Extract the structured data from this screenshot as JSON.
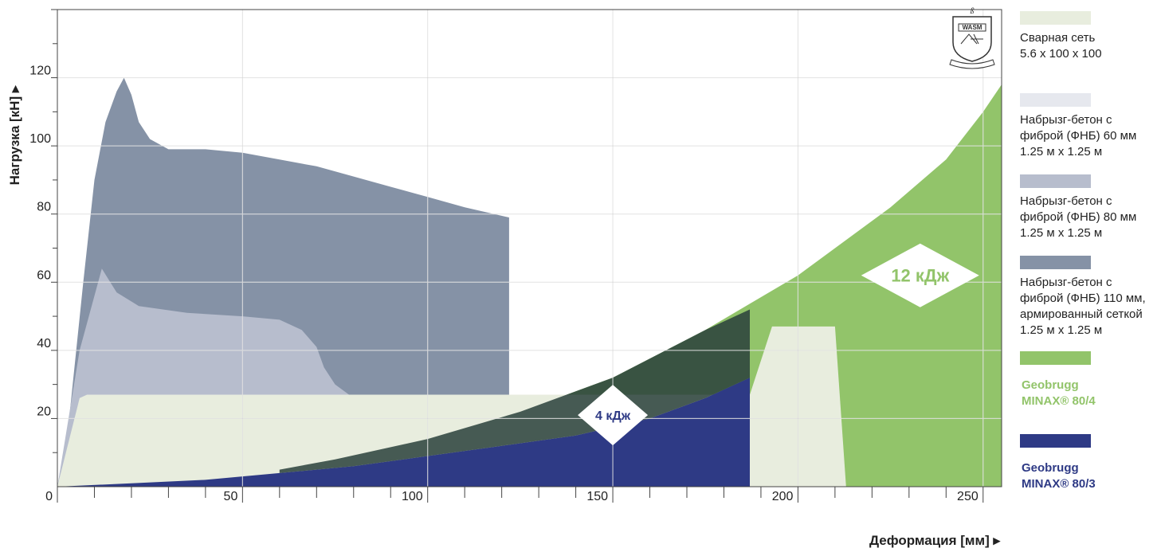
{
  "chart_data": {
    "type": "area",
    "xlabel": "Деформация [мм] ▸",
    "ylabel": "Нагрузка [кН] ▸",
    "xlim": [
      0,
      255
    ],
    "ylim": [
      0,
      140
    ],
    "x_ticks": [
      0,
      50,
      100,
      150,
      200,
      250
    ],
    "y_ticks": [
      20,
      40,
      60,
      80,
      100,
      120
    ],
    "grid": true,
    "colors": {
      "mesh": "#e8edde",
      "fnb60": "#e6e8ee",
      "fnb80": "#b7bdcd",
      "fnb110": "#8592a6",
      "minax4": "#92c46a",
      "minax3": "#2e3a85",
      "overlap": "#293f3b"
    },
    "series": [
      {
        "key": "mesh",
        "name": "Сварная сеть 5.6 x 100 x 100",
        "points": [
          [
            0,
            0
          ],
          [
            6,
            26
          ],
          [
            8,
            27
          ],
          [
            20,
            27
          ],
          [
            187,
            27
          ],
          [
            187,
            0
          ]
        ],
        "extra_shape": [
          [
            187,
            0
          ],
          [
            187,
            27
          ],
          [
            193,
            47
          ],
          [
            210,
            47
          ],
          [
            213,
            0
          ]
        ]
      },
      {
        "key": "fnb60",
        "name": "Набрызг-бетон с фиброй (ФНБ) 60 мм 1.25 м x 1.25 м",
        "points": [
          [
            0,
            0
          ],
          [
            3,
            12
          ],
          [
            6,
            22
          ],
          [
            10,
            26
          ],
          [
            15,
            25
          ],
          [
            25,
            23
          ],
          [
            40,
            22
          ],
          [
            60,
            22
          ],
          [
            60,
            0
          ]
        ]
      },
      {
        "key": "fnb80",
        "name": "Набрызг-бетон с фиброй (ФНБ) 80 мм 1.25 м x 1.25 м",
        "points": [
          [
            0,
            0
          ],
          [
            6,
            40
          ],
          [
            10,
            56
          ],
          [
            12,
            64
          ],
          [
            16,
            57
          ],
          [
            22,
            53
          ],
          [
            35,
            51
          ],
          [
            50,
            50
          ],
          [
            60,
            49
          ],
          [
            66,
            46
          ],
          [
            70,
            41
          ],
          [
            72,
            35
          ],
          [
            75,
            30
          ],
          [
            80,
            26
          ],
          [
            82,
            22
          ],
          [
            82,
            0
          ]
        ]
      },
      {
        "key": "fnb110",
        "name": "Набрызг-бетон с фиброй (ФНБ) 110 мм, армированный сеткой 1.25 м x 1.25 м",
        "points": [
          [
            0,
            0
          ],
          [
            3,
            18
          ],
          [
            7,
            60
          ],
          [
            10,
            90
          ],
          [
            13,
            107
          ],
          [
            16,
            116
          ],
          [
            18,
            120
          ],
          [
            20,
            115
          ],
          [
            22,
            107
          ],
          [
            25,
            102
          ],
          [
            30,
            99
          ],
          [
            40,
            99
          ],
          [
            50,
            98
          ],
          [
            60,
            96
          ],
          [
            70,
            94
          ],
          [
            80,
            91
          ],
          [
            90,
            88
          ],
          [
            100,
            85
          ],
          [
            110,
            82
          ],
          [
            122,
            79
          ],
          [
            122,
            0
          ]
        ]
      },
      {
        "key": "minax4",
        "name": "Geobrugg MINAX® 80/4",
        "points": [
          [
            0,
            0
          ],
          [
            25,
            2
          ],
          [
            50,
            4
          ],
          [
            75,
            8
          ],
          [
            100,
            14
          ],
          [
            125,
            22
          ],
          [
            150,
            32
          ],
          [
            175,
            46
          ],
          [
            200,
            62
          ],
          [
            225,
            82
          ],
          [
            240,
            96
          ],
          [
            250,
            110
          ],
          [
            255,
            118
          ],
          [
            255,
            0
          ]
        ]
      },
      {
        "key": "minax3",
        "name": "Geobrugg MINAX® 80/3",
        "points": [
          [
            0,
            0
          ],
          [
            20,
            1
          ],
          [
            40,
            2
          ],
          [
            60,
            4
          ],
          [
            80,
            6
          ],
          [
            100,
            9
          ],
          [
            120,
            12
          ],
          [
            140,
            15
          ],
          [
            160,
            20
          ],
          [
            175,
            26
          ],
          [
            187,
            32
          ],
          [
            187,
            0
          ]
        ]
      }
    ],
    "annotations": [
      {
        "text": "4 кДж",
        "x": 150,
        "y": 21,
        "color": "#2e3a85"
      },
      {
        "text": "12 кДж",
        "x": 233,
        "y": 62,
        "color": "#92c46a"
      }
    ],
    "logo": {
      "text": "WASM"
    }
  },
  "legend": [
    {
      "key": "mesh",
      "color": "#e8edde",
      "lines": [
        "Сварная сеть",
        "5.6 x 100 x 100"
      ],
      "bold": false,
      "text_color": "#222222"
    },
    {
      "key": "fnb60",
      "color": "#e6e8ee",
      "lines": [
        "Набрызг-бетон с",
        "фиброй (ФНБ) 60 мм",
        "1.25 м x 1.25 м"
      ],
      "bold": false,
      "text_color": "#222222"
    },
    {
      "key": "fnb80",
      "color": "#b7bdcd",
      "lines": [
        "Набрызг-бетон с",
        "фиброй (ФНБ) 80 мм",
        "1.25 м x 1.25 м"
      ],
      "bold": false,
      "text_color": "#222222"
    },
    {
      "key": "fnb110",
      "color": "#8592a6",
      "lines": [
        "Набрызг-бетон с",
        "фиброй (ФНБ) 110 мм,",
        "армированный сеткой",
        "1.25 м x 1.25 м"
      ],
      "bold": false,
      "text_color": "#222222"
    },
    {
      "key": "minax4",
      "color": "#92c46a",
      "lines": [
        "Geobrugg",
        "MINAX® 80/4"
      ],
      "bold": true,
      "text_color": "#92c46a"
    },
    {
      "key": "minax3",
      "color": "#2e3a85",
      "lines": [
        "Geobrugg",
        "MINAX® 80/3"
      ],
      "bold": true,
      "text_color": "#2e3a85"
    }
  ]
}
